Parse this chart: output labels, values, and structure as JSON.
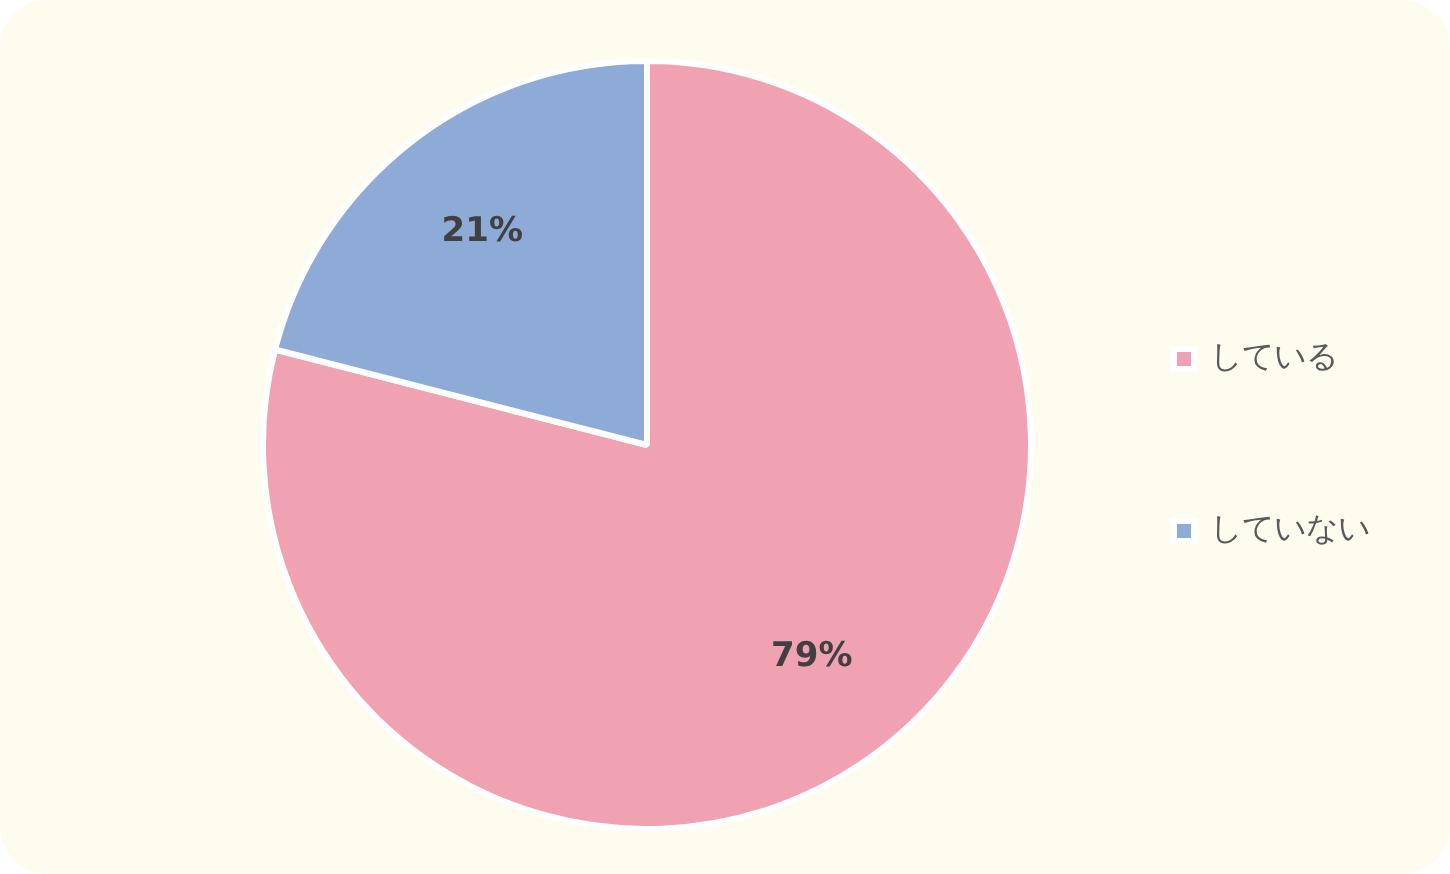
{
  "chart_data": {
    "type": "pie",
    "categories": [
      "している",
      "していない"
    ],
    "values": [
      79,
      21
    ],
    "colors": [
      "#f0a1b2",
      "#8eaad6"
    ],
    "value_labels": [
      "79%",
      "21%"
    ],
    "legend": "right"
  }
}
